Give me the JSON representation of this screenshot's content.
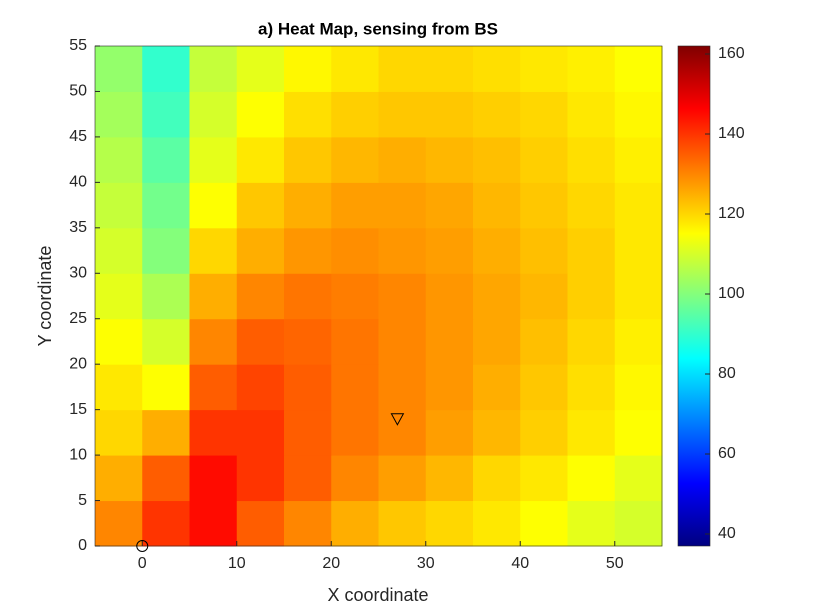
{
  "chart_data": {
    "type": "heatmap",
    "title": "a) Heat Map, sensing from BS",
    "x_label": "X coordinate",
    "y_label": "Y coordinate",
    "x_edges": [
      -5,
      0,
      5,
      10,
      15,
      20,
      25,
      30,
      35,
      40,
      45,
      50,
      55
    ],
    "y_edges": [
      0,
      5,
      10,
      15,
      20,
      25,
      30,
      35,
      40,
      45,
      50,
      55
    ],
    "z": [
      [
        130,
        140,
        145,
        135,
        130,
        125,
        122,
        120,
        118,
        115,
        112,
        110
      ],
      [
        125,
        135,
        145,
        140,
        135,
        130,
        127,
        124,
        120,
        118,
        115,
        112
      ],
      [
        120,
        125,
        140,
        140,
        135,
        132,
        130,
        127,
        124,
        121,
        118,
        115
      ],
      [
        118,
        115,
        135,
        138,
        135,
        132,
        130,
        128,
        125,
        122,
        119,
        116
      ],
      [
        115,
        110,
        130,
        135,
        134,
        132,
        130,
        128,
        126,
        123,
        120,
        117
      ],
      [
        112,
        105,
        125,
        130,
        132,
        131,
        130,
        128,
        126,
        124,
        121,
        118
      ],
      [
        110,
        100,
        120,
        125,
        128,
        129,
        128,
        127,
        125,
        123,
        121,
        118
      ],
      [
        108,
        98,
        115,
        122,
        125,
        127,
        127,
        126,
        124,
        122,
        120,
        118
      ],
      [
        106,
        95,
        112,
        118,
        122,
        124,
        125,
        124,
        123,
        121,
        119,
        117
      ],
      [
        104,
        92,
        110,
        115,
        119,
        121,
        122,
        122,
        121,
        120,
        118,
        116
      ],
      [
        102,
        90,
        108,
        112,
        116,
        118,
        120,
        120,
        119,
        118,
        117,
        115
      ]
    ],
    "colormap": "jet",
    "xlim": [
      -5,
      55
    ],
    "xticks": [
      0,
      10,
      20,
      30,
      40,
      50
    ],
    "ylim": [
      0,
      55
    ],
    "yticks": [
      0,
      5,
      10,
      15,
      20,
      25,
      30,
      35,
      40,
      45,
      50,
      55
    ],
    "clim": [
      37,
      162
    ],
    "cticks": [
      40,
      60,
      80,
      100,
      120,
      140,
      160
    ],
    "markers": [
      {
        "shape": "circle",
        "x": 0,
        "y": 0
      },
      {
        "shape": "triangle",
        "x": 27,
        "y": 14
      }
    ]
  }
}
